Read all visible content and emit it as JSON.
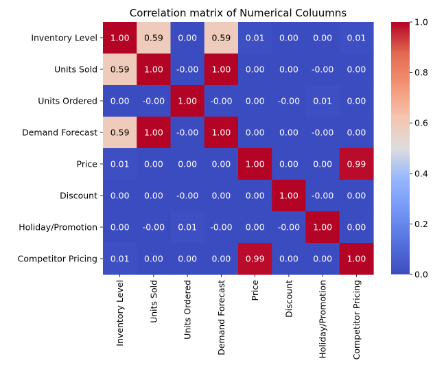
{
  "chart_data": {
    "type": "heatmap",
    "title": "Correlation matrix of Numerical Coluumns",
    "xlabel": "",
    "ylabel": "",
    "labels": [
      "Inventory Level",
      "Units Sold",
      "Units Ordered",
      "Demand Forecast",
      "Price",
      "Discount",
      "Holiday/Promotion",
      "Competitor Pricing"
    ],
    "cell_text": [
      [
        "1.00",
        "0.59",
        "0.00",
        "0.59",
        "0.01",
        "0.00",
        "0.00",
        "0.01"
      ],
      [
        "0.59",
        "1.00",
        "-0.00",
        "1.00",
        "0.00",
        "0.00",
        "-0.00",
        "0.00"
      ],
      [
        "0.00",
        "-0.00",
        "1.00",
        "-0.00",
        "0.00",
        "-0.00",
        "0.01",
        "0.00"
      ],
      [
        "0.59",
        "1.00",
        "-0.00",
        "1.00",
        "0.00",
        "0.00",
        "-0.00",
        "0.00"
      ],
      [
        "0.01",
        "0.00",
        "0.00",
        "0.00",
        "1.00",
        "0.00",
        "0.00",
        "0.99"
      ],
      [
        "0.00",
        "0.00",
        "-0.00",
        "0.00",
        "0.00",
        "1.00",
        "-0.00",
        "0.00"
      ],
      [
        "0.00",
        "-0.00",
        "0.01",
        "-0.00",
        "0.00",
        "-0.00",
        "1.00",
        "0.00"
      ],
      [
        "0.01",
        "0.00",
        "0.00",
        "0.00",
        "0.99",
        "0.00",
        "0.00",
        "1.00"
      ]
    ],
    "colorbar": {
      "ticks": [
        "0.0",
        "0.2",
        "0.4",
        "0.6",
        "0.8",
        "1.0"
      ],
      "range": [
        0,
        1
      ],
      "colormap": "coolwarm",
      "low_color": "#3b4cc0",
      "mid_color": "#dddddd",
      "high_color": "#b40426"
    },
    "annotated": true,
    "grid": false
  }
}
